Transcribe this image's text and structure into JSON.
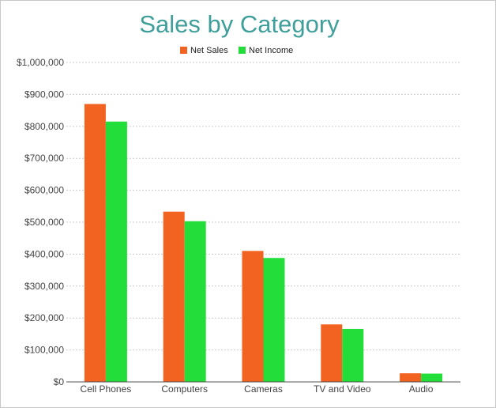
{
  "chart_data": {
    "type": "bar",
    "title": "Sales by Category",
    "categories": [
      "Cell Phones",
      "Computers",
      "Cameras",
      "TV and Video",
      "Audio"
    ],
    "series": [
      {
        "name": "Net Sales",
        "values": [
          870000,
          533000,
          410000,
          180000,
          27000
        ],
        "color": "#f26322"
      },
      {
        "name": "Net Income",
        "values": [
          815000,
          503000,
          388000,
          166000,
          26000
        ],
        "color": "#22dd3a"
      }
    ],
    "ylim": [
      0,
      1000000
    ],
    "yticks": [
      0,
      100000,
      200000,
      300000,
      400000,
      500000,
      600000,
      700000,
      800000,
      900000,
      1000000
    ],
    "ytick_labels": [
      "$0",
      "$100,000",
      "$200,000",
      "$300,000",
      "$400,000",
      "$500,000",
      "$600,000",
      "$700,000",
      "$800,000",
      "$900,000",
      "$1,000,000"
    ],
    "grid": true,
    "legend_position": "top-center",
    "title_color": "#3f9f9a",
    "grid_color": "#cccccc"
  }
}
